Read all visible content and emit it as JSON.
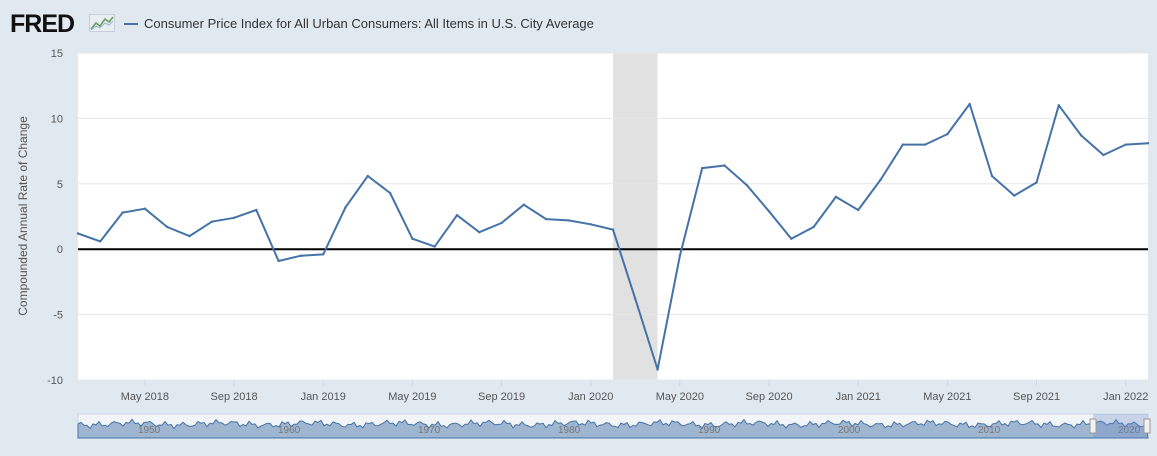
{
  "header": {
    "logo_text": "FRED"
  },
  "colors": {
    "series": "#4572a7",
    "recession": "#e1e1e1",
    "zero_line": "#000000",
    "plot_bg": "#ffffff",
    "page_bg": "#e1e9f0"
  },
  "chart_data": {
    "type": "line",
    "title": "",
    "ylabel": "Compounded Annual Rate of Change",
    "xlabel": "",
    "ylim": [
      -10,
      15
    ],
    "yticks": [
      15,
      10,
      5,
      0,
      -5,
      -10
    ],
    "xlim": [
      "2018-02",
      "2022-02"
    ],
    "xticks": [
      {
        "date": "2018-05",
        "label": "May 2018"
      },
      {
        "date": "2018-09",
        "label": "Sep 2018"
      },
      {
        "date": "2019-01",
        "label": "Jan 2019"
      },
      {
        "date": "2019-05",
        "label": "May 2019"
      },
      {
        "date": "2019-09",
        "label": "Sep 2019"
      },
      {
        "date": "2020-01",
        "label": "Jan 2020"
      },
      {
        "date": "2020-05",
        "label": "May 2020"
      },
      {
        "date": "2020-09",
        "label": "Sep 2020"
      },
      {
        "date": "2021-01",
        "label": "Jan 2021"
      },
      {
        "date": "2021-05",
        "label": "May 2021"
      },
      {
        "date": "2021-09",
        "label": "Sep 2021"
      },
      {
        "date": "2022-01",
        "label": "Jan 2022"
      }
    ],
    "recession_shading": {
      "start": "2020-02",
      "end": "2020-04"
    },
    "zero_line": true,
    "grid": "horizontal",
    "legend_placement": "top-left",
    "series": [
      {
        "name": "Consumer Price Index for All Urban Consumers: All Items in U.S. City Average",
        "x": [
          "2018-02",
          "2018-03",
          "2018-04",
          "2018-05",
          "2018-06",
          "2018-07",
          "2018-08",
          "2018-09",
          "2018-10",
          "2018-11",
          "2018-12",
          "2019-01",
          "2019-02",
          "2019-03",
          "2019-04",
          "2019-05",
          "2019-06",
          "2019-07",
          "2019-08",
          "2019-09",
          "2019-10",
          "2019-11",
          "2019-12",
          "2020-01",
          "2020-02",
          "2020-03",
          "2020-04",
          "2020-05",
          "2020-06",
          "2020-07",
          "2020-08",
          "2020-09",
          "2020-10",
          "2020-11",
          "2020-12",
          "2021-01",
          "2021-02",
          "2021-03",
          "2021-04",
          "2021-05",
          "2021-06",
          "2021-07",
          "2021-08",
          "2021-09",
          "2021-10",
          "2021-11",
          "2021-12",
          "2022-01",
          "2022-02"
        ],
        "values": [
          1.2,
          0.6,
          2.8,
          3.1,
          1.7,
          1.0,
          2.1,
          2.4,
          3.0,
          -0.9,
          -0.5,
          -0.4,
          3.2,
          5.6,
          4.3,
          0.8,
          0.2,
          2.6,
          1.3,
          2.0,
          3.4,
          2.3,
          2.2,
          1.9,
          1.5,
          -3.8,
          -9.2,
          -0.5,
          6.2,
          6.4,
          4.9,
          2.9,
          0.8,
          1.7,
          4.0,
          3.0,
          5.3,
          8.0,
          8.0,
          8.8,
          11.1,
          5.6,
          4.1,
          5.1,
          11.0,
          8.7,
          7.2,
          8.0,
          8.1
        ]
      }
    ]
  },
  "navigator": {
    "labels": [
      "1950",
      "1960",
      "1970",
      "1980",
      "1990",
      "2000",
      "2010",
      "2020"
    ]
  }
}
